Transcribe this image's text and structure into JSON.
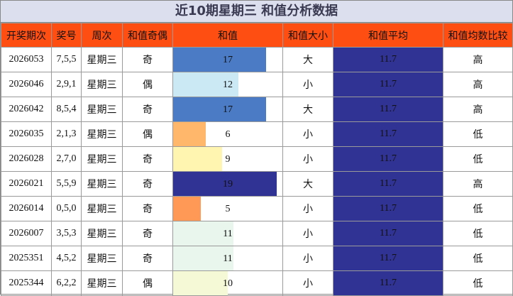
{
  "title": "近10期星期三 和值分析数据",
  "headers": [
    "开奖期次",
    "奖号",
    "周次",
    "和值奇偶",
    "和值",
    "和值大小",
    "和值平均",
    "和值均数比较"
  ],
  "sum_max": 20,
  "rows": [
    {
      "period": "2026053",
      "numbers": "7,5,5",
      "weekday": "星期三",
      "parity": "奇",
      "sum": 17,
      "size": "大",
      "avg": "11.7",
      "compare": "高",
      "color": "#4a7bc4"
    },
    {
      "period": "2026046",
      "numbers": "2,9,1",
      "weekday": "星期三",
      "parity": "偶",
      "sum": 12,
      "size": "小",
      "avg": "11.7",
      "compare": "高",
      "color": "#cbe9f5"
    },
    {
      "period": "2026042",
      "numbers": "8,5,4",
      "weekday": "星期三",
      "parity": "奇",
      "sum": 17,
      "size": "大",
      "avg": "11.7",
      "compare": "高",
      "color": "#4a7bc4"
    },
    {
      "period": "2026035",
      "numbers": "2,1,3",
      "weekday": "星期三",
      "parity": "偶",
      "sum": 6,
      "size": "小",
      "avg": "11.7",
      "compare": "低",
      "color": "#ffb86b"
    },
    {
      "period": "2026028",
      "numbers": "2,7,0",
      "weekday": "星期三",
      "parity": "奇",
      "sum": 9,
      "size": "小",
      "avg": "11.7",
      "compare": "低",
      "color": "#fff4b0"
    },
    {
      "period": "2026021",
      "numbers": "5,5,9",
      "weekday": "星期三",
      "parity": "奇",
      "sum": 19,
      "size": "大",
      "avg": "11.7",
      "compare": "高",
      "color": "#313394"
    },
    {
      "period": "2026014",
      "numbers": "0,5,0",
      "weekday": "星期三",
      "parity": "奇",
      "sum": 5,
      "size": "小",
      "avg": "11.7",
      "compare": "低",
      "color": "#ff9955"
    },
    {
      "period": "2026007",
      "numbers": "3,5,3",
      "weekday": "星期三",
      "parity": "奇",
      "sum": 11,
      "size": "小",
      "avg": "11.7",
      "compare": "低",
      "color": "#e9f6ee"
    },
    {
      "period": "2025351",
      "numbers": "4,5,2",
      "weekday": "星期三",
      "parity": "奇",
      "sum": 11,
      "size": "小",
      "avg": "11.7",
      "compare": "低",
      "color": "#e9f6ee"
    },
    {
      "period": "2025344",
      "numbers": "6,2,2",
      "weekday": "星期三",
      "parity": "偶",
      "sum": 10,
      "size": "小",
      "avg": "11.7",
      "compare": "低",
      "color": "#f6f9d6"
    }
  ]
}
